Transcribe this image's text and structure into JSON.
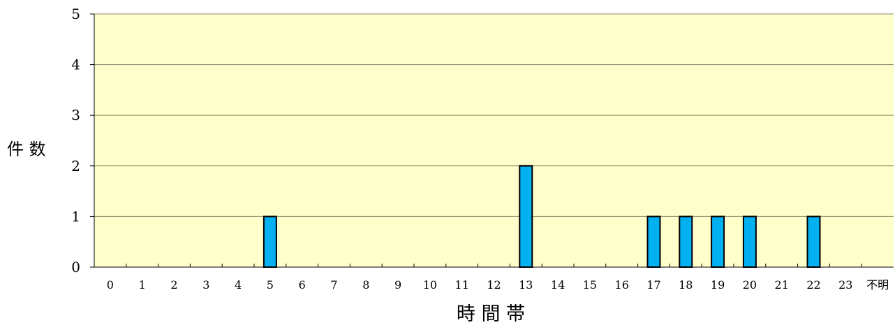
{
  "chart_data": {
    "type": "bar",
    "title": "",
    "xlabel": "時 間 帯",
    "ylabel": "件 数",
    "categories": [
      "0",
      "1",
      "2",
      "3",
      "4",
      "5",
      "6",
      "7",
      "8",
      "9",
      "10",
      "11",
      "12",
      "13",
      "14",
      "15",
      "16",
      "17",
      "18",
      "19",
      "20",
      "21",
      "22",
      "23",
      "不明"
    ],
    "values": [
      0,
      0,
      0,
      0,
      0,
      1,
      0,
      0,
      0,
      0,
      0,
      0,
      0,
      2,
      0,
      0,
      0,
      1,
      1,
      1,
      1,
      0,
      1,
      0,
      0
    ],
    "ylim": [
      0,
      5
    ],
    "yticks": [
      "0",
      "1",
      "2",
      "3",
      "4",
      "5"
    ],
    "grid": true,
    "legend": "none",
    "colors": {
      "plot_background": "#ffffcc",
      "bar_fill": "#00b0f0",
      "bar_stroke": "#000000",
      "gridline": "#8a8a6a",
      "axis": "#000000"
    }
  }
}
